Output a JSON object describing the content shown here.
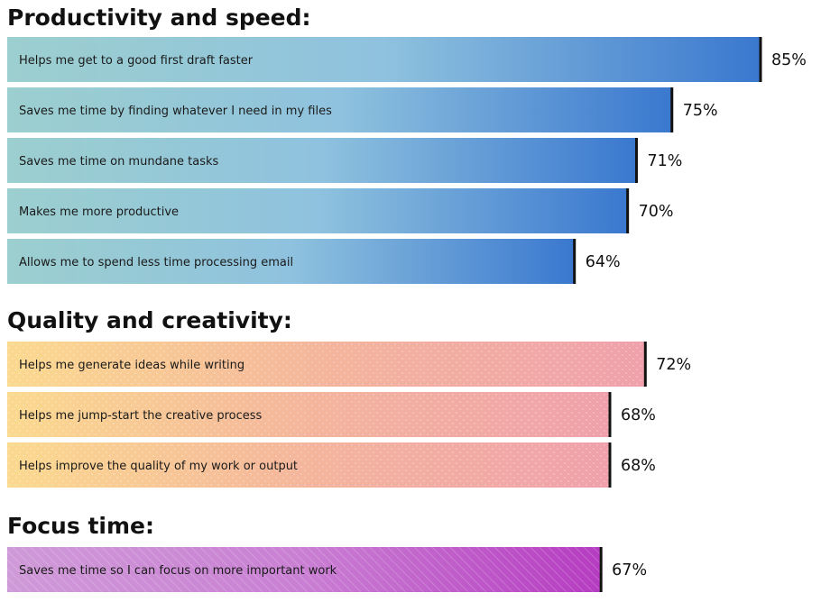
{
  "chart_data": {
    "type": "bar",
    "orientation": "horizontal",
    "value_format": "percent",
    "groups": [
      {
        "title": "Productivity and speed:",
        "style": "blue-gradient",
        "colors": [
          "#9ccfcf",
          "#8fc2de",
          "#3a78cf"
        ],
        "bars": [
          {
            "label": "Helps me get to a good first draft faster",
            "value": 85,
            "value_label": "85%"
          },
          {
            "label": "Saves me time by finding whatever I need in my files",
            "value": 75,
            "value_label": "75%"
          },
          {
            "label": "Saves me time on mundane tasks",
            "value": 71,
            "value_label": "71%"
          },
          {
            "label": "Makes me more productive",
            "value": 70,
            "value_label": "70%"
          },
          {
            "label": "Allows me to spend less time processing email",
            "value": 64,
            "value_label": "64%"
          }
        ]
      },
      {
        "title": "Quality and creativity:",
        "style": "peach-gradient-dotted",
        "colors": [
          "#fbd98f",
          "#f4b59c",
          "#f0a1ac"
        ],
        "bars": [
          {
            "label": "Helps me generate ideas while writing",
            "value": 72,
            "value_label": "72%"
          },
          {
            "label": "Helps me jump-start the creative process",
            "value": 68,
            "value_label": "68%"
          },
          {
            "label": "Helps improve the quality of my work or output",
            "value": 68,
            "value_label": "68%"
          }
        ]
      },
      {
        "title": "Focus time:",
        "style": "purple-gradient-hatched",
        "colors": [
          "#cf9ad8",
          "#c97fd3",
          "#b63cc1"
        ],
        "bars": [
          {
            "label": "Saves me time so I can focus on more important work",
            "value": 67,
            "value_label": "67%"
          }
        ]
      }
    ]
  }
}
